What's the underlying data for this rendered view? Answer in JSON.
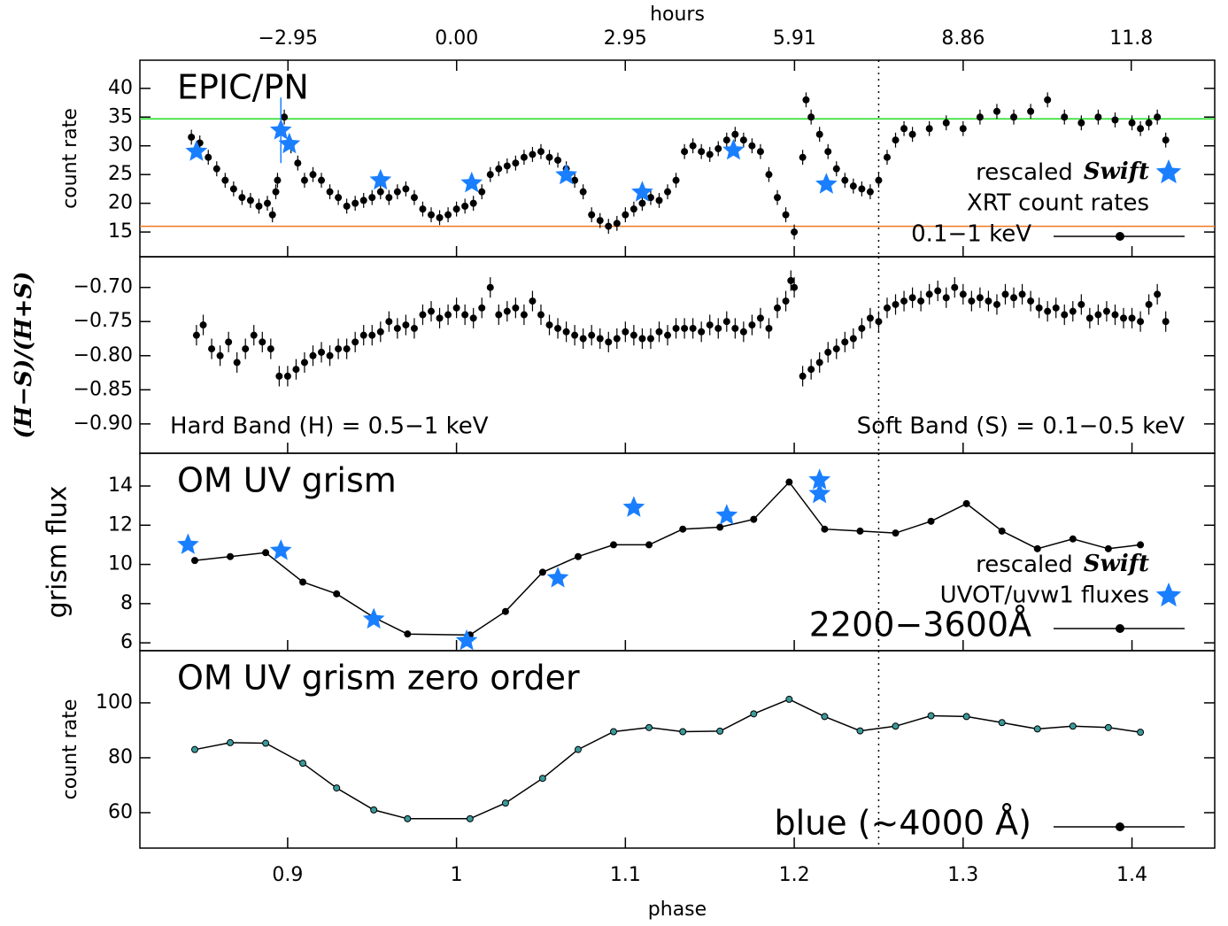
{
  "chart_data": [
    {
      "type": "scatter",
      "label": "EPIC/PN",
      "ylabel": "count rate",
      "x2label": "hours",
      "x2lim": [
        -5.54,
        13.26
      ],
      "x2ticks": [
        {
          "value": -2.95,
          "label": "−2.95"
        },
        {
          "value": 0,
          "label": "0.00"
        },
        2.95,
        5.91,
        8.86,
        11.8
      ],
      "xlim": [
        0.8125,
        1.449
      ],
      "ylim": [
        10.7,
        44.9
      ],
      "yticks": [
        15,
        20,
        25,
        30,
        35,
        40
      ],
      "reference_x": 1.25,
      "hlines": [
        {
          "value": 34.7,
          "color": "#22dd22"
        },
        {
          "value": 16,
          "color": "#f07820"
        }
      ],
      "series": [
        {
          "name": "0.1−1 keV",
          "color": "#000000",
          "marker": "dot",
          "error": 1.3,
          "x": [
            0.843,
            0.848,
            0.853,
            0.858,
            0.863,
            0.868,
            0.873,
            0.878,
            0.883,
            0.888,
            0.891,
            0.893,
            0.894,
            0.896,
            0.898,
            0.902,
            0.906,
            0.91,
            0.915,
            0.92,
            0.925,
            0.93,
            0.935,
            0.94,
            0.945,
            0.95,
            0.955,
            0.96,
            0.965,
            0.97,
            0.975,
            0.98,
            0.985,
            0.99,
            0.995,
            1.0,
            1.005,
            1.01,
            1.015,
            1.02,
            1.025,
            1.03,
            1.035,
            1.04,
            1.045,
            1.05,
            1.055,
            1.06,
            1.065,
            1.07,
            1.075,
            1.08,
            1.085,
            1.09,
            1.095,
            1.1,
            1.105,
            1.11,
            1.115,
            1.12,
            1.125,
            1.13,
            1.135,
            1.14,
            1.145,
            1.15,
            1.155,
            1.16,
            1.165,
            1.17,
            1.175,
            1.18,
            1.185,
            1.19,
            1.195,
            1.2,
            1.205,
            1.207,
            1.21,
            1.215,
            1.22,
            1.225,
            1.23,
            1.235,
            1.24,
            1.245,
            1.25,
            1.255,
            1.26,
            1.265,
            1.27,
            1.28,
            1.29,
            1.3,
            1.31,
            1.32,
            1.33,
            1.34,
            1.35,
            1.36,
            1.37,
            1.38,
            1.39,
            1.4,
            1.405,
            1.41,
            1.415,
            1.42
          ],
          "values": [
            31.5,
            30.5,
            28,
            26,
            24,
            22.5,
            21,
            20.5,
            19.5,
            20,
            18,
            22,
            24,
            33,
            35,
            30,
            27,
            24,
            25,
            24,
            22,
            21,
            19.5,
            20,
            20.5,
            21,
            22,
            21,
            22,
            22.5,
            21,
            19,
            18,
            17.5,
            18,
            19,
            19.5,
            20,
            22,
            25,
            26,
            26.5,
            27,
            28,
            28.5,
            29,
            28,
            27.5,
            26,
            24,
            22,
            18,
            17,
            16,
            16.5,
            18,
            19,
            20,
            21,
            20.5,
            22,
            24,
            29,
            30,
            29,
            28.5,
            29.5,
            31,
            32,
            31,
            30,
            29,
            25,
            21,
            18,
            15,
            28,
            38,
            35,
            32,
            29,
            26,
            24,
            23,
            22.5,
            22,
            24,
            28,
            31,
            33,
            32,
            33,
            34,
            33,
            35,
            36,
            35,
            36,
            38,
            35,
            34,
            35,
            34.5,
            34,
            33,
            34,
            35,
            31
          ]
        },
        {
          "name": [
            "rescaled",
            "Swift",
            "XRT count rates"
          ],
          "color": "#1a7fff",
          "marker": "star",
          "x": [
            0.846,
            0.896,
            0.901,
            0.955,
            1.009,
            1.065,
            1.11,
            1.164,
            1.219
          ],
          "values": [
            29.0,
            32.7,
            30.3,
            24.0,
            23.5,
            24.9,
            21.9,
            29.2,
            23.3
          ],
          "errors": [
            null,
            5.7,
            null,
            null,
            null,
            null,
            null,
            null,
            null
          ]
        }
      ]
    },
    {
      "type": "scatter",
      "ylabel": "(H−S)/(H+S)",
      "annotations": [
        "Hard Band (H) = 0.5−1 keV",
        "Soft Band (S) = 0.1−0.5 keV"
      ],
      "xlim": [
        0.8125,
        1.449
      ],
      "ylim": [
        -0.943,
        -0.655
      ],
      "yticks": [
        {
          "value": -0.7,
          "label": "−0.70"
        },
        {
          "value": -0.75,
          "label": "−0.75"
        },
        {
          "value": -0.8,
          "label": "−0.80"
        },
        {
          "value": -0.85,
          "label": "−0.85"
        },
        {
          "value": -0.9,
          "label": "−0.90"
        }
      ],
      "series": [
        {
          "color": "#000000",
          "marker": "dot",
          "error": 0.015,
          "x": [
            0.846,
            0.85,
            0.855,
            0.86,
            0.865,
            0.87,
            0.875,
            0.88,
            0.885,
            0.89,
            0.895,
            0.9,
            0.905,
            0.91,
            0.915,
            0.92,
            0.925,
            0.93,
            0.935,
            0.94,
            0.945,
            0.95,
            0.955,
            0.96,
            0.965,
            0.97,
            0.975,
            0.98,
            0.985,
            0.99,
            0.995,
            1.0,
            1.005,
            1.01,
            1.015,
            1.02,
            1.025,
            1.03,
            1.035,
            1.04,
            1.045,
            1.05,
            1.055,
            1.06,
            1.065,
            1.07,
            1.075,
            1.08,
            1.085,
            1.09,
            1.095,
            1.1,
            1.105,
            1.11,
            1.115,
            1.12,
            1.125,
            1.13,
            1.135,
            1.14,
            1.145,
            1.15,
            1.155,
            1.16,
            1.165,
            1.17,
            1.175,
            1.18,
            1.185,
            1.19,
            1.195,
            1.198,
            1.2,
            1.205,
            1.21,
            1.215,
            1.22,
            1.225,
            1.23,
            1.235,
            1.24,
            1.245,
            1.25,
            1.255,
            1.26,
            1.265,
            1.27,
            1.275,
            1.28,
            1.285,
            1.29,
            1.295,
            1.3,
            1.305,
            1.31,
            1.315,
            1.32,
            1.325,
            1.33,
            1.335,
            1.34,
            1.345,
            1.35,
            1.355,
            1.36,
            1.365,
            1.37,
            1.375,
            1.38,
            1.385,
            1.39,
            1.395,
            1.4,
            1.405,
            1.41,
            1.415,
            1.42
          ],
          "values": [
            -0.77,
            -0.755,
            -0.79,
            -0.8,
            -0.78,
            -0.81,
            -0.79,
            -0.77,
            -0.78,
            -0.79,
            -0.83,
            -0.83,
            -0.82,
            -0.81,
            -0.8,
            -0.795,
            -0.8,
            -0.79,
            -0.79,
            -0.78,
            -0.77,
            -0.77,
            -0.765,
            -0.75,
            -0.76,
            -0.755,
            -0.76,
            -0.74,
            -0.735,
            -0.745,
            -0.74,
            -0.73,
            -0.74,
            -0.745,
            -0.73,
            -0.7,
            -0.74,
            -0.735,
            -0.73,
            -0.74,
            -0.72,
            -0.74,
            -0.755,
            -0.76,
            -0.765,
            -0.77,
            -0.775,
            -0.77,
            -0.775,
            -0.78,
            -0.775,
            -0.765,
            -0.77,
            -0.775,
            -0.775,
            -0.765,
            -0.77,
            -0.76,
            -0.76,
            -0.76,
            -0.765,
            -0.755,
            -0.76,
            -0.75,
            -0.76,
            -0.765,
            -0.755,
            -0.745,
            -0.76,
            -0.73,
            -0.72,
            -0.69,
            -0.7,
            -0.83,
            -0.82,
            -0.81,
            -0.795,
            -0.79,
            -0.78,
            -0.775,
            -0.76,
            -0.745,
            -0.75,
            -0.73,
            -0.725,
            -0.72,
            -0.715,
            -0.72,
            -0.71,
            -0.705,
            -0.715,
            -0.7,
            -0.71,
            -0.72,
            -0.715,
            -0.72,
            -0.725,
            -0.71,
            -0.715,
            -0.71,
            -0.72,
            -0.73,
            -0.735,
            -0.73,
            -0.74,
            -0.735,
            -0.725,
            -0.745,
            -0.74,
            -0.735,
            -0.74,
            -0.745,
            -0.745,
            -0.75,
            -0.725,
            -0.71,
            -0.75
          ]
        }
      ]
    },
    {
      "type": "line",
      "label": "OM UV grism",
      "ylabel": "grism flux",
      "xlim": [
        0.8125,
        1.449
      ],
      "ylim": [
        5.6,
        15.67
      ],
      "yticks": [
        6,
        8,
        10,
        12,
        14
      ],
      "series": [
        {
          "name": "2200−3600Å",
          "color": "#000000",
          "marker": "dot",
          "x": [
            0.845,
            0.866,
            0.887,
            0.909,
            0.929,
            0.951,
            0.971,
            1.008,
            1.029,
            1.051,
            1.072,
            1.093,
            1.114,
            1.134,
            1.156,
            1.176,
            1.197,
            1.218,
            1.239,
            1.26,
            1.281,
            1.302,
            1.323,
            1.344,
            1.365,
            1.386,
            1.405
          ],
          "values": [
            10.2,
            10.4,
            10.6,
            9.1,
            8.5,
            7.3,
            6.45,
            6.4,
            7.6,
            9.6,
            10.4,
            11.0,
            11.0,
            11.8,
            11.9,
            12.3,
            14.2,
            11.8,
            11.7,
            11.6,
            12.2,
            13.1,
            11.7,
            10.8,
            11.3,
            10.8,
            11.0
          ]
        },
        {
          "name": [
            "rescaled",
            "Swift",
            "UVOT/uvw1 fluxes"
          ],
          "color": "#1a7fff",
          "marker": "star",
          "x": [
            0.841,
            0.896,
            0.951,
            1.006,
            1.06,
            1.105,
            1.16,
            1.215,
            1.215
          ],
          "values": [
            11.0,
            10.7,
            7.2,
            6.1,
            9.3,
            12.9,
            12.5,
            14.3,
            13.6
          ]
        }
      ]
    },
    {
      "type": "line",
      "label": "OM UV grism zero order",
      "ylabel": "count rate",
      "xlabel": "phase",
      "xlim": [
        0.8125,
        1.449
      ],
      "xticks": [
        0.9,
        1.0,
        1.1,
        1.2,
        1.3,
        1.4
      ],
      "ylim": [
        47.1,
        119
      ],
      "yticks": [
        60,
        80,
        100
      ],
      "series": [
        {
          "name": "blue (~4000 Å)",
          "color": "#3a9a9a",
          "marker": "dot",
          "x": [
            0.845,
            0.866,
            0.887,
            0.909,
            0.929,
            0.951,
            0.971,
            1.008,
            1.029,
            1.051,
            1.072,
            1.093,
            1.114,
            1.134,
            1.156,
            1.176,
            1.197,
            1.218,
            1.239,
            1.26,
            1.281,
            1.302,
            1.323,
            1.344,
            1.365,
            1.386,
            1.405
          ],
          "values": [
            83,
            85.5,
            85.3,
            78,
            69,
            61,
            57.8,
            57.8,
            63.5,
            72.5,
            83,
            89.5,
            91,
            89.5,
            89.7,
            96,
            101.3,
            95,
            89.8,
            91.5,
            95.3,
            95,
            92.8,
            90.5,
            91.5,
            91,
            89.3
          ]
        }
      ]
    }
  ]
}
